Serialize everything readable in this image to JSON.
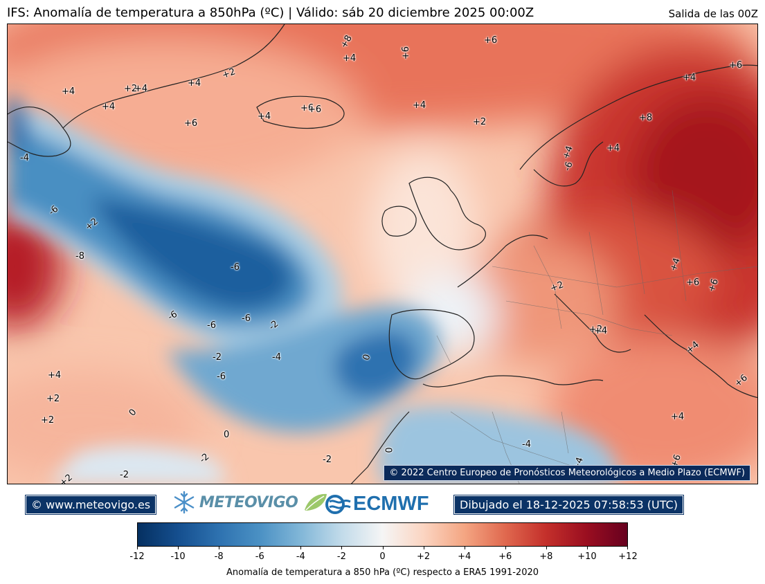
{
  "header": {
    "title": "IFS: Anomalía de temperatura a 850hPa  (ºC) | Válido: sáb 20 diciembre 2025 00:00Z",
    "run": "Salida de las 00Z"
  },
  "map": {
    "copyright": "© 2022 Centro Europeo de Pronósticos Meteorológicos a Medio Plazo (ECMWF)",
    "contour_labels": [
      {
        "text": "+8"
      },
      {
        "text": "+6"
      },
      {
        "text": "+4"
      },
      {
        "text": "+6"
      },
      {
        "text": "+4"
      },
      {
        "text": "+2"
      },
      {
        "text": "+4"
      },
      {
        "text": "+2"
      },
      {
        "text": "+4"
      },
      {
        "text": "+4"
      },
      {
        "text": "+6"
      },
      {
        "text": "+6"
      },
      {
        "text": "+6"
      },
      {
        "text": "+4"
      },
      {
        "text": "+2"
      },
      {
        "text": "+8"
      },
      {
        "text": "+6"
      },
      {
        "text": "+4"
      },
      {
        "text": "+4"
      },
      {
        "text": "+4"
      },
      {
        "text": "+4"
      },
      {
        "text": "-6"
      },
      {
        "text": "-4"
      },
      {
        "text": "-6"
      },
      {
        "text": "+2"
      },
      {
        "text": "-8"
      },
      {
        "text": "-6"
      },
      {
        "text": "-6"
      },
      {
        "text": "-6"
      },
      {
        "text": "-6"
      },
      {
        "text": "-2"
      },
      {
        "text": "-2"
      },
      {
        "text": "-4"
      },
      {
        "text": "-6"
      },
      {
        "text": "0"
      },
      {
        "text": "+4"
      },
      {
        "text": "+2"
      },
      {
        "text": "+2"
      },
      {
        "text": "0"
      },
      {
        "text": "0"
      },
      {
        "text": "-2"
      },
      {
        "text": "-2"
      },
      {
        "text": "+2"
      },
      {
        "text": "+2"
      },
      {
        "text": "+4"
      },
      {
        "text": "+6"
      },
      {
        "text": "+6"
      },
      {
        "text": "+2"
      },
      {
        "text": "+4"
      },
      {
        "text": "+4"
      },
      {
        "text": "+6"
      },
      {
        "text": "+4"
      },
      {
        "text": "-4"
      },
      {
        "text": "0"
      },
      {
        "text": "-2"
      },
      {
        "text": "+6"
      },
      {
        "text": "+4"
      }
    ]
  },
  "footer": {
    "website": "© www.meteovigo.es",
    "meteovigo_logo": "METEOVIGO",
    "ecmwf_logo": "ECMWF",
    "drawn": "Dibujado el 18-12-2025 07:58:53 (UTC)"
  },
  "colorbar": {
    "min": -12,
    "max": 12,
    "ticks": [
      "-12",
      "-10",
      "-8",
      "-6",
      "-4",
      "-2",
      "0",
      "+2",
      "+4",
      "+6",
      "+8",
      "+10",
      "+12"
    ],
    "label": "Anomalía de temperatura a 850 hPa (ºC) respecto a ERA5 1991-2020",
    "colors": [
      "#053061",
      "#154f8f",
      "#2e72b0",
      "#4b91c4",
      "#82b7d8",
      "#c2dbea",
      "#f5f5f5",
      "#fbd5c2",
      "#f4a683",
      "#e0694f",
      "#c4302b",
      "#9a0e20",
      "#67001f"
    ]
  }
}
